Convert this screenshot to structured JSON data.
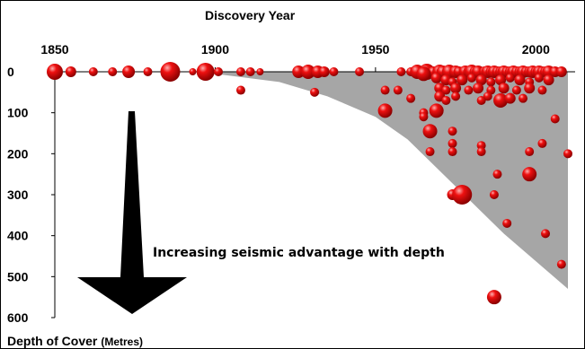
{
  "chart_data": {
    "type": "scatter",
    "title": "Discovery Year",
    "xlabel": "Discovery Year",
    "ylabel": "Depth of Cover",
    "ylabel_unit": "(Metres)",
    "xlim": [
      1850,
      2010
    ],
    "ylim": [
      0,
      600
    ],
    "x_ticks": [
      "1850",
      "1900",
      "1950",
      "2000"
    ],
    "y_ticks": [
      "0",
      "100",
      "200",
      "300",
      "400",
      "500",
      "600"
    ],
    "annotation": "Increasing seismic advantage with depth",
    "shaded_region": {
      "color": "#a6a6a6",
      "x": [
        1895,
        1920,
        1935,
        1950,
        1960,
        1975,
        1990,
        2010
      ],
      "y": [
        0,
        25,
        60,
        110,
        165,
        280,
        395,
        530
      ]
    },
    "marker_color": "#e00000",
    "points": [
      {
        "x": 1850,
        "y": 0,
        "s": 9
      },
      {
        "x": 1855,
        "y": 0,
        "s": 6
      },
      {
        "x": 1862,
        "y": 0,
        "s": 5
      },
      {
        "x": 1868,
        "y": 0,
        "s": 5
      },
      {
        "x": 1873,
        "y": 0,
        "s": 7
      },
      {
        "x": 1879,
        "y": 0,
        "s": 5
      },
      {
        "x": 1886,
        "y": 0,
        "s": 11
      },
      {
        "x": 1893,
        "y": 0,
        "s": 4
      },
      {
        "x": 1897,
        "y": 0,
        "s": 10
      },
      {
        "x": 1901,
        "y": 0,
        "s": 5
      },
      {
        "x": 1908,
        "y": 0,
        "s": 5
      },
      {
        "x": 1911,
        "y": 0,
        "s": 5
      },
      {
        "x": 1914,
        "y": 0,
        "s": 4
      },
      {
        "x": 1908,
        "y": 45,
        "s": 5
      },
      {
        "x": 1926,
        "y": 0,
        "s": 7
      },
      {
        "x": 1929,
        "y": 0,
        "s": 8
      },
      {
        "x": 1932,
        "y": 0,
        "s": 7
      },
      {
        "x": 1934,
        "y": 0,
        "s": 6
      },
      {
        "x": 1937,
        "y": 0,
        "s": 5
      },
      {
        "x": 1945,
        "y": 0,
        "s": 5
      },
      {
        "x": 1931,
        "y": 50,
        "s": 5
      },
      {
        "x": 1958,
        "y": 0,
        "s": 5
      },
      {
        "x": 1961,
        "y": 0,
        "s": 5
      },
      {
        "x": 1963,
        "y": 0,
        "s": 8
      },
      {
        "x": 1966,
        "y": 0,
        "s": 9
      },
      {
        "x": 1968,
        "y": 0,
        "s": 6
      },
      {
        "x": 1970,
        "y": 0,
        "s": 8
      },
      {
        "x": 1971,
        "y": 0,
        "s": 7
      },
      {
        "x": 1973,
        "y": 0,
        "s": 8
      },
      {
        "x": 1975,
        "y": 0,
        "s": 7
      },
      {
        "x": 1976,
        "y": 0,
        "s": 6
      },
      {
        "x": 1978,
        "y": 0,
        "s": 7
      },
      {
        "x": 1979,
        "y": 0,
        "s": 6
      },
      {
        "x": 1980,
        "y": 0,
        "s": 8
      },
      {
        "x": 1981,
        "y": 0,
        "s": 6
      },
      {
        "x": 1982,
        "y": 0,
        "s": 7
      },
      {
        "x": 1984,
        "y": 0,
        "s": 6
      },
      {
        "x": 1985,
        "y": 0,
        "s": 7
      },
      {
        "x": 1986,
        "y": 0,
        "s": 6
      },
      {
        "x": 1987,
        "y": 0,
        "s": 7
      },
      {
        "x": 1988,
        "y": 0,
        "s": 6
      },
      {
        "x": 1989,
        "y": 0,
        "s": 6
      },
      {
        "x": 1990,
        "y": 0,
        "s": 7
      },
      {
        "x": 1991,
        "y": 0,
        "s": 6
      },
      {
        "x": 1992,
        "y": 0,
        "s": 6
      },
      {
        "x": 1993,
        "y": 0,
        "s": 7
      },
      {
        "x": 1994,
        "y": 0,
        "s": 6
      },
      {
        "x": 1995,
        "y": 0,
        "s": 6
      },
      {
        "x": 1996,
        "y": 0,
        "s": 7
      },
      {
        "x": 1997,
        "y": 0,
        "s": 6
      },
      {
        "x": 1998,
        "y": 0,
        "s": 6
      },
      {
        "x": 1999,
        "y": 0,
        "s": 7
      },
      {
        "x": 2000,
        "y": 0,
        "s": 6
      },
      {
        "x": 2001,
        "y": 0,
        "s": 7
      },
      {
        "x": 2002,
        "y": 0,
        "s": 6
      },
      {
        "x": 2003,
        "y": 0,
        "s": 6
      },
      {
        "x": 2004,
        "y": 0,
        "s": 7
      },
      {
        "x": 2006,
        "y": 0,
        "s": 6
      },
      {
        "x": 2008,
        "y": 0,
        "s": 6
      },
      {
        "x": 1965,
        "y": 5,
        "s": 8
      },
      {
        "x": 1969,
        "y": 15,
        "s": 6
      },
      {
        "x": 1972,
        "y": 20,
        "s": 6
      },
      {
        "x": 1974,
        "y": 25,
        "s": 5
      },
      {
        "x": 1977,
        "y": 20,
        "s": 6
      },
      {
        "x": 1980,
        "y": 15,
        "s": 5
      },
      {
        "x": 1983,
        "y": 20,
        "s": 6
      },
      {
        "x": 1986,
        "y": 25,
        "s": 5
      },
      {
        "x": 1989,
        "y": 20,
        "s": 6
      },
      {
        "x": 1992,
        "y": 15,
        "s": 5
      },
      {
        "x": 1995,
        "y": 20,
        "s": 6
      },
      {
        "x": 1998,
        "y": 25,
        "s": 5
      },
      {
        "x": 2001,
        "y": 15,
        "s": 5
      },
      {
        "x": 2004,
        "y": 20,
        "s": 6
      },
      {
        "x": 1970,
        "y": 40,
        "s": 6
      },
      {
        "x": 1972,
        "y": 45,
        "s": 5
      },
      {
        "x": 1975,
        "y": 40,
        "s": 6
      },
      {
        "x": 1979,
        "y": 45,
        "s": 5
      },
      {
        "x": 1982,
        "y": 40,
        "s": 6
      },
      {
        "x": 1986,
        "y": 45,
        "s": 5
      },
      {
        "x": 1990,
        "y": 40,
        "s": 6
      },
      {
        "x": 1994,
        "y": 45,
        "s": 5
      },
      {
        "x": 1998,
        "y": 40,
        "s": 6
      },
      {
        "x": 2002,
        "y": 45,
        "s": 5
      },
      {
        "x": 1953,
        "y": 45,
        "s": 5
      },
      {
        "x": 1957,
        "y": 45,
        "s": 5
      },
      {
        "x": 1970,
        "y": 60,
        "s": 6
      },
      {
        "x": 1972,
        "y": 70,
        "s": 5
      },
      {
        "x": 1975,
        "y": 60,
        "s": 5
      },
      {
        "x": 1985,
        "y": 60,
        "s": 5
      },
      {
        "x": 1989,
        "y": 70,
        "s": 8
      },
      {
        "x": 1992,
        "y": 65,
        "s": 6
      },
      {
        "x": 1983,
        "y": 70,
        "s": 5
      },
      {
        "x": 1961,
        "y": 65,
        "s": 5
      },
      {
        "x": 1996,
        "y": 65,
        "s": 5
      },
      {
        "x": 1953,
        "y": 95,
        "s": 8
      },
      {
        "x": 1969,
        "y": 95,
        "s": 8
      },
      {
        "x": 1965,
        "y": 100,
        "s": 5
      },
      {
        "x": 1965,
        "y": 110,
        "s": 5
      },
      {
        "x": 2006,
        "y": 115,
        "s": 5
      },
      {
        "x": 1967,
        "y": 145,
        "s": 8
      },
      {
        "x": 1974,
        "y": 145,
        "s": 5
      },
      {
        "x": 1974,
        "y": 175,
        "s": 5
      },
      {
        "x": 1974,
        "y": 195,
        "s": 5
      },
      {
        "x": 1967,
        "y": 195,
        "s": 5
      },
      {
        "x": 1983,
        "y": 180,
        "s": 5
      },
      {
        "x": 1983,
        "y": 195,
        "s": 5
      },
      {
        "x": 2002,
        "y": 175,
        "s": 5
      },
      {
        "x": 1998,
        "y": 195,
        "s": 5
      },
      {
        "x": 2010,
        "y": 200,
        "s": 5
      },
      {
        "x": 1998,
        "y": 250,
        "s": 8
      },
      {
        "x": 1988,
        "y": 250,
        "s": 5
      },
      {
        "x": 1974,
        "y": 300,
        "s": 6
      },
      {
        "x": 1977,
        "y": 300,
        "s": 11
      },
      {
        "x": 1987,
        "y": 300,
        "s": 5
      },
      {
        "x": 1991,
        "y": 370,
        "s": 5
      },
      {
        "x": 2003,
        "y": 395,
        "s": 5
      },
      {
        "x": 2008,
        "y": 470,
        "s": 5
      },
      {
        "x": 1987,
        "y": 550,
        "s": 8
      }
    ]
  }
}
